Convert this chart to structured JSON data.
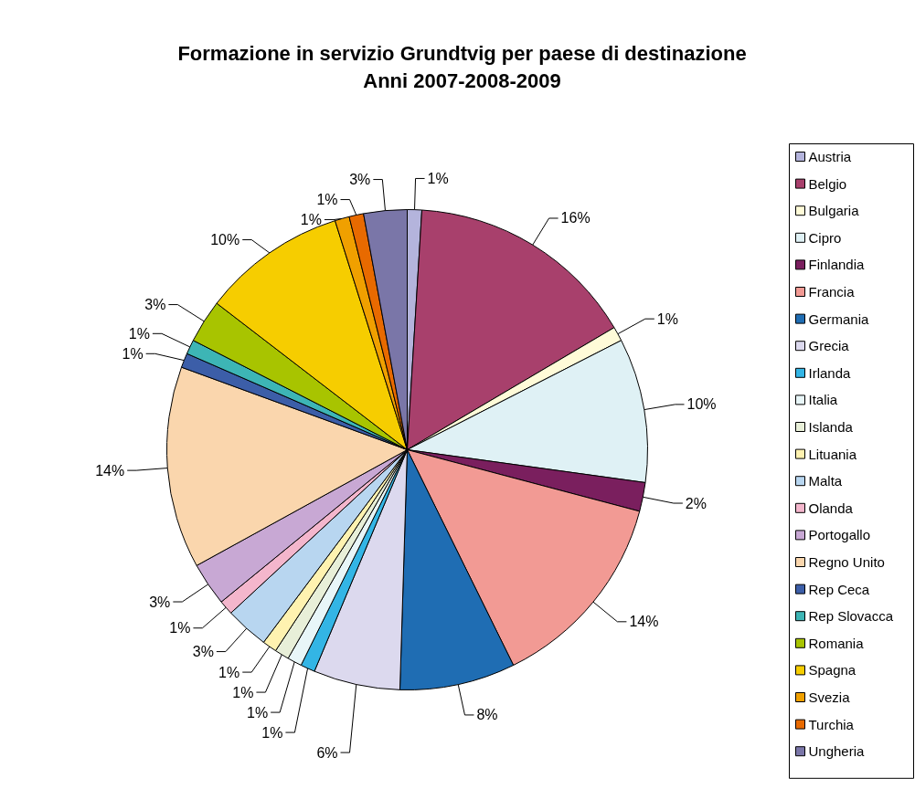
{
  "chart_data": {
    "type": "pie",
    "title": "Formazione in servizio Grundtvig per paese di destinazione\nAnni 2007-2008-2009",
    "categories": [
      "Austria",
      "Belgio",
      "Bulgaria",
      "Cipro",
      "Finlandia",
      "Francia",
      "Germania",
      "Grecia",
      "Irlanda",
      "Italia",
      "Islanda",
      "Lituania",
      "Malta",
      "Olanda",
      "Portogallo",
      "Regno Unito",
      "Rep Ceca",
      "Rep Slovacca",
      "Romania",
      "Spagna",
      "Svezia",
      "Turchia",
      "Ungheria"
    ],
    "values": [
      1,
      16,
      1,
      10,
      2,
      14,
      8,
      6,
      1,
      1,
      1,
      1,
      3,
      1,
      3,
      14,
      1,
      1,
      3,
      10,
      1,
      1,
      3
    ],
    "colors": [
      "#b4b4dc",
      "#a8406c",
      "#fffbd8",
      "#dff1f5",
      "#7a1f5e",
      "#f29a94",
      "#1f6db3",
      "#dcd9ee",
      "#33b5e5",
      "#e8f6f8",
      "#e8efd8",
      "#fff2b0",
      "#b8d6f0",
      "#f4b6cc",
      "#c8a8d4",
      "#fad6ad",
      "#3c5ea8",
      "#3db5b5",
      "#a8c400",
      "#f6cd00",
      "#f0a000",
      "#e86a00",
      "#7a76a8"
    ],
    "value_labels": [
      "1%",
      "16%",
      "1%",
      "10%",
      "2%",
      "14%",
      "8%",
      "6%",
      "1%",
      "1%",
      "1%",
      "1%",
      "3%",
      "1%",
      "3%",
      "14%",
      "1%",
      "1%",
      "3%",
      "10%",
      "1%",
      "1%",
      "3%"
    ],
    "legend": "right"
  }
}
